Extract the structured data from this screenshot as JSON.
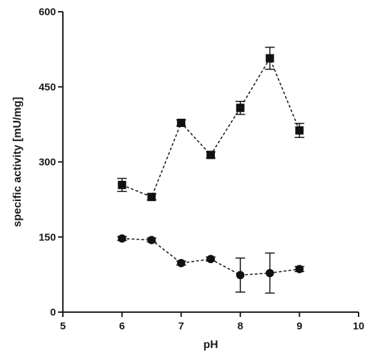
{
  "chart_data": {
    "type": "line",
    "xlabel": "pH",
    "ylabel": "specific activity [mU/mg]",
    "xlim": [
      5,
      10
    ],
    "ylim": [
      0,
      600
    ],
    "xticks": [
      5,
      6,
      7,
      8,
      9,
      10
    ],
    "yticks": [
      0,
      150,
      300,
      450,
      600
    ],
    "grid": false,
    "series": [
      {
        "marker": "square",
        "x": [
          6,
          6.5,
          7,
          7.5,
          8,
          8.5,
          9
        ],
        "y": [
          254,
          230,
          378,
          314,
          408,
          507,
          363
        ],
        "err": [
          13,
          6,
          6,
          6,
          13,
          22,
          14
        ]
      },
      {
        "marker": "circle",
        "x": [
          6,
          6.5,
          7,
          7.5,
          8,
          8.5,
          9
        ],
        "y": [
          147,
          144,
          98,
          106,
          74,
          78,
          86
        ],
        "err": [
          4,
          4,
          4,
          4,
          34,
          40,
          5
        ]
      }
    ]
  }
}
